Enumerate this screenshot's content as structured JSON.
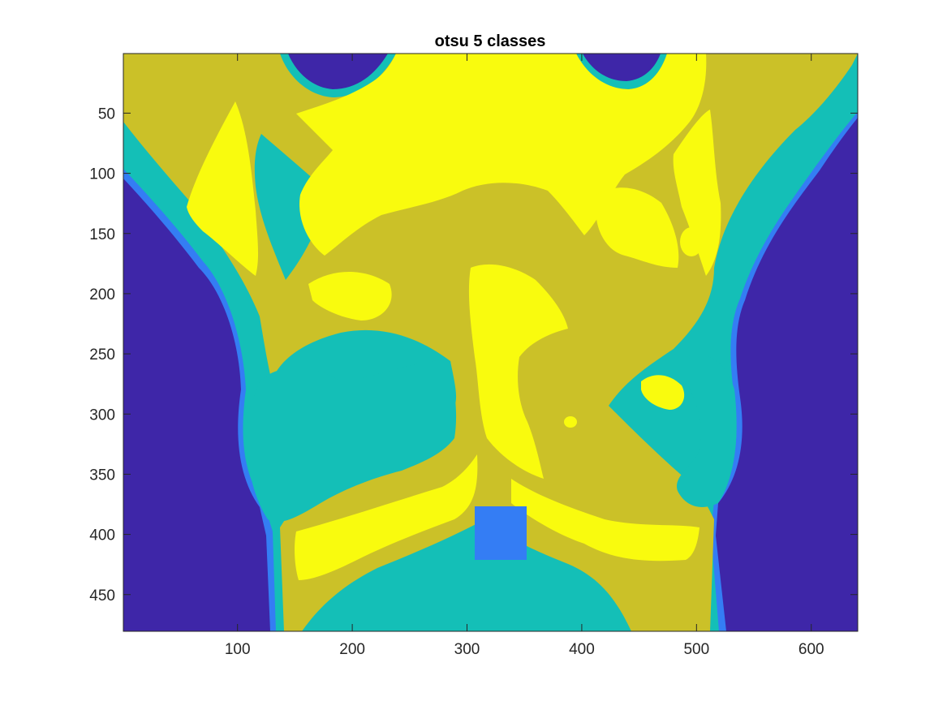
{
  "chart_data": {
    "type": "heatmap",
    "title": "otsu 5 classes",
    "xlabel": "",
    "ylabel": "",
    "xlim": [
      0.5,
      640.5
    ],
    "ylim": [
      0.5,
      480.5
    ],
    "y_reversed": true,
    "x_ticks": [
      100,
      200,
      300,
      400,
      500,
      600
    ],
    "y_ticks": [
      50,
      100,
      150,
      200,
      250,
      300,
      350,
      400,
      450
    ],
    "x_tick_labels": [
      "100",
      "200",
      "300",
      "400",
      "500",
      "600"
    ],
    "y_tick_labels": [
      "50",
      "100",
      "150",
      "200",
      "250",
      "300",
      "350",
      "400",
      "450"
    ],
    "classes": [
      1,
      2,
      3,
      4,
      5
    ],
    "class_colors": [
      "#3e26a8",
      "#347df4",
      "#14bfb7",
      "#cbc128",
      "#f9fb0e"
    ],
    "grid": false,
    "legend": "none"
  }
}
